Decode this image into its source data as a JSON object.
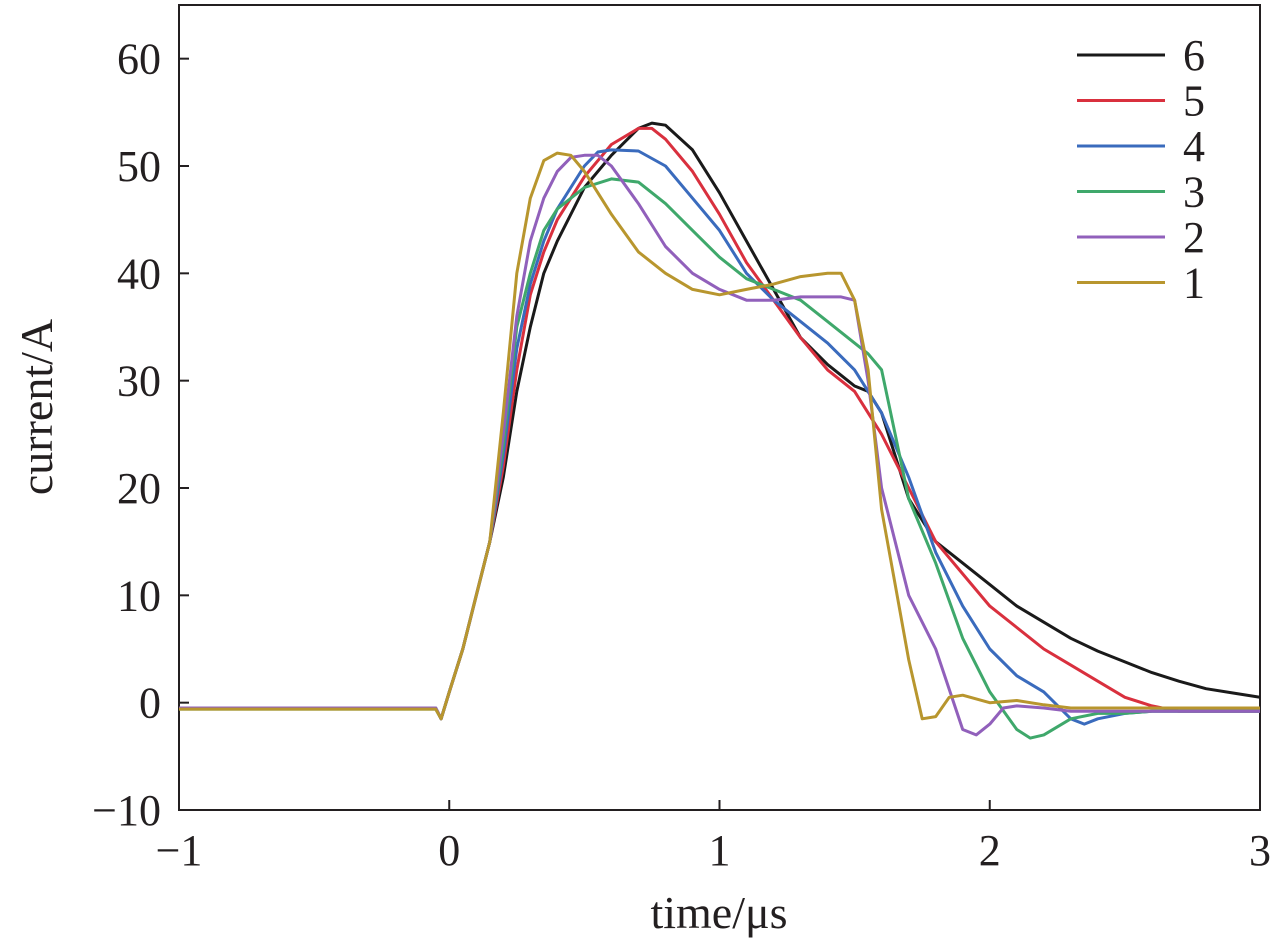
{
  "chart_data": {
    "type": "line",
    "title": "",
    "xlabel": "time/μs",
    "ylabel": "current/A",
    "xlim": [
      -1,
      3
    ],
    "ylim": [
      -10,
      65
    ],
    "x_ticks": [
      -1,
      0,
      1,
      2,
      3
    ],
    "x_tick_labels": [
      "−1",
      "0",
      "1",
      "2",
      "3"
    ],
    "y_ticks": [
      -10,
      0,
      10,
      20,
      30,
      40,
      50,
      60
    ],
    "y_tick_labels": [
      "−10",
      "0",
      "10",
      "20",
      "30",
      "40",
      "50",
      "60"
    ],
    "grid": false,
    "legend_position": "top-right",
    "series": [
      {
        "name": "6",
        "color": "#1a1a1a",
        "x": [
          -1,
          -0.6,
          -0.2,
          -0.05,
          -0.03,
          0,
          0.05,
          0.1,
          0.15,
          0.2,
          0.25,
          0.3,
          0.35,
          0.4,
          0.5,
          0.6,
          0.7,
          0.75,
          0.8,
          0.9,
          1.0,
          1.1,
          1.2,
          1.3,
          1.4,
          1.5,
          1.55,
          1.6,
          1.65,
          1.7,
          1.8,
          1.9,
          2.0,
          2.1,
          2.2,
          2.3,
          2.4,
          2.5,
          2.6,
          2.7,
          2.8,
          2.9,
          3.0
        ],
        "y": [
          -0.5,
          -0.5,
          -0.5,
          -0.5,
          -1.5,
          1,
          5,
          10,
          15,
          21,
          29,
          35,
          40,
          43,
          48,
          51,
          53.5,
          54,
          53.8,
          51.5,
          47.5,
          43,
          38.5,
          34,
          31.5,
          29.5,
          29,
          27,
          23,
          19,
          15,
          13,
          11,
          9,
          7.5,
          6,
          4.8,
          3.8,
          2.8,
          2,
          1.3,
          0.9,
          0.5
        ]
      },
      {
        "name": "5",
        "color": "#d9303e",
        "x": [
          -1,
          -0.6,
          -0.2,
          -0.05,
          -0.03,
          0,
          0.05,
          0.1,
          0.15,
          0.2,
          0.25,
          0.3,
          0.35,
          0.4,
          0.5,
          0.6,
          0.7,
          0.75,
          0.8,
          0.9,
          1.0,
          1.1,
          1.2,
          1.3,
          1.4,
          1.5,
          1.6,
          1.7,
          1.8,
          1.9,
          2.0,
          2.1,
          2.2,
          2.3,
          2.4,
          2.5,
          2.6,
          2.7,
          2.8,
          2.9,
          3.0
        ],
        "y": [
          -0.5,
          -0.5,
          -0.5,
          -0.5,
          -1.5,
          1,
          5,
          10,
          15,
          22,
          31,
          38,
          42,
          45,
          49,
          52,
          53.5,
          53.5,
          52.5,
          49.5,
          45.5,
          41,
          37.5,
          34,
          31,
          29,
          25,
          20,
          15,
          12,
          9,
          7,
          5,
          3.5,
          2,
          0.5,
          -0.3,
          -0.8,
          -0.8,
          -0.8,
          -0.8
        ]
      },
      {
        "name": "4",
        "color": "#3a6bbd",
        "x": [
          -1,
          -0.6,
          -0.2,
          -0.05,
          -0.03,
          0,
          0.05,
          0.1,
          0.15,
          0.2,
          0.25,
          0.3,
          0.35,
          0.4,
          0.5,
          0.55,
          0.6,
          0.7,
          0.8,
          0.9,
          1.0,
          1.1,
          1.2,
          1.3,
          1.4,
          1.5,
          1.6,
          1.7,
          1.8,
          1.9,
          2.0,
          2.1,
          2.2,
          2.3,
          2.35,
          2.4,
          2.5,
          2.6,
          2.7,
          2.8,
          2.9,
          3.0
        ],
        "y": [
          -0.5,
          -0.5,
          -0.5,
          -0.5,
          -1.5,
          1,
          5,
          10,
          15,
          23,
          33,
          39,
          43,
          46,
          50,
          51.3,
          51.5,
          51.4,
          50,
          47,
          44,
          40,
          37.5,
          35.5,
          33.5,
          31,
          27,
          21,
          14,
          9,
          5,
          2.5,
          1,
          -1.5,
          -2,
          -1.5,
          -1,
          -0.8,
          -0.8,
          -0.8,
          -0.8,
          -0.8
        ]
      },
      {
        "name": "3",
        "color": "#3fa86b",
        "x": [
          -1,
          -0.6,
          -0.2,
          -0.05,
          -0.03,
          0,
          0.05,
          0.1,
          0.15,
          0.2,
          0.25,
          0.3,
          0.35,
          0.4,
          0.5,
          0.6,
          0.7,
          0.8,
          0.9,
          1.0,
          1.1,
          1.2,
          1.3,
          1.4,
          1.5,
          1.55,
          1.6,
          1.65,
          1.7,
          1.8,
          1.9,
          2.0,
          2.1,
          2.15,
          2.2,
          2.3,
          2.4,
          2.5,
          2.6,
          2.7,
          2.8,
          2.9,
          3.0
        ],
        "y": [
          -0.6,
          -0.6,
          -0.6,
          -0.6,
          -1.5,
          1,
          5,
          10,
          15,
          24,
          35,
          40,
          44,
          46,
          48,
          48.8,
          48.5,
          46.5,
          44,
          41.5,
          39.5,
          38.5,
          37.5,
          35.5,
          33.5,
          32.5,
          31,
          25,
          19,
          13,
          6,
          1,
          -2.5,
          -3.3,
          -3,
          -1.5,
          -1,
          -1,
          -0.8,
          -0.8,
          -0.8,
          -0.8,
          -0.8
        ]
      },
      {
        "name": "2",
        "color": "#9160bb",
        "x": [
          -1,
          -0.6,
          -0.2,
          -0.05,
          -0.03,
          0,
          0.05,
          0.1,
          0.15,
          0.2,
          0.25,
          0.3,
          0.35,
          0.4,
          0.45,
          0.5,
          0.55,
          0.6,
          0.7,
          0.8,
          0.9,
          1.0,
          1.1,
          1.2,
          1.3,
          1.4,
          1.45,
          1.5,
          1.55,
          1.6,
          1.65,
          1.7,
          1.8,
          1.9,
          1.95,
          2.0,
          2.05,
          2.1,
          2.2,
          2.3,
          2.4,
          2.5,
          2.6,
          2.7,
          2.8,
          2.9,
          3.0
        ],
        "y": [
          -0.5,
          -0.5,
          -0.5,
          -0.5,
          -1.5,
          1,
          5,
          10,
          15,
          25,
          36,
          43,
          47,
          49.5,
          50.8,
          51,
          51,
          50,
          46.5,
          42.5,
          40,
          38.5,
          37.5,
          37.5,
          37.8,
          37.8,
          37.8,
          37.5,
          30,
          20,
          15,
          10,
          5,
          -2.5,
          -3,
          -2,
          -0.5,
          -0.3,
          -0.5,
          -0.8,
          -0.8,
          -0.8,
          -0.8,
          -0.8,
          -0.8,
          -0.8,
          -0.8
        ]
      },
      {
        "name": "1",
        "color": "#b8962e",
        "x": [
          -1,
          -0.6,
          -0.2,
          -0.05,
          -0.03,
          0,
          0.05,
          0.1,
          0.15,
          0.2,
          0.25,
          0.3,
          0.35,
          0.4,
          0.45,
          0.5,
          0.6,
          0.7,
          0.8,
          0.9,
          1.0,
          1.1,
          1.2,
          1.3,
          1.4,
          1.45,
          1.5,
          1.55,
          1.6,
          1.65,
          1.7,
          1.75,
          1.8,
          1.85,
          1.9,
          2.0,
          2.1,
          2.2,
          2.3,
          2.4,
          2.5,
          2.6,
          2.7,
          2.8,
          2.9,
          3.0
        ],
        "y": [
          -0.6,
          -0.6,
          -0.6,
          -0.6,
          -1.5,
          1,
          5,
          10,
          15,
          27,
          40,
          47,
          50.5,
          51.2,
          51,
          49.5,
          45.5,
          42,
          40,
          38.5,
          38,
          38.5,
          39,
          39.7,
          40,
          40,
          37.5,
          31,
          18,
          11,
          4,
          -1.5,
          -1.3,
          0.5,
          0.7,
          0,
          0.2,
          -0.2,
          -0.5,
          -0.5,
          -0.5,
          -0.5,
          -0.5,
          -0.5,
          -0.5,
          -0.5
        ]
      }
    ]
  }
}
